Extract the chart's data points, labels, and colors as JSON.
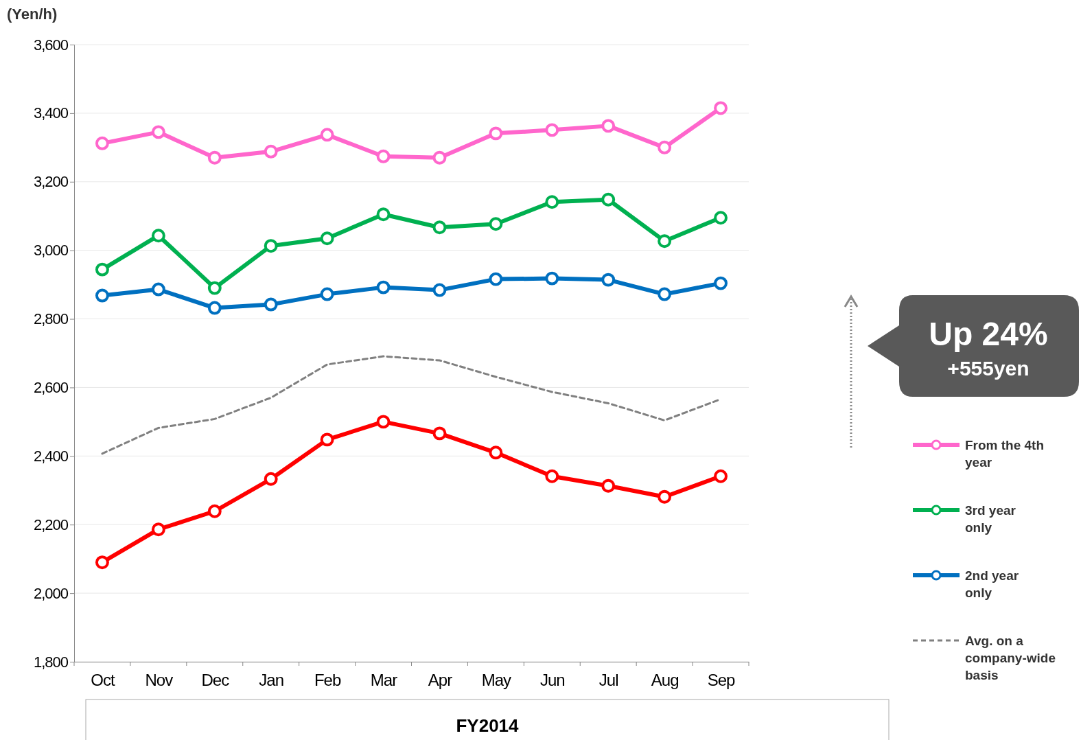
{
  "chart_data": {
    "type": "line",
    "ylabel": "(Yen/h)",
    "xlabel": "FY2014",
    "categories": [
      "Oct",
      "Nov",
      "Dec",
      "Jan",
      "Feb",
      "Mar",
      "Apr",
      "May",
      "Jun",
      "Jul",
      "Aug",
      "Sep"
    ],
    "ylim": [
      1800,
      3600
    ],
    "yticks": [
      {
        "value": 1800,
        "label": "1,800"
      },
      {
        "value": 2000,
        "label": "2,000"
      },
      {
        "value": 2200,
        "label": "2,200"
      },
      {
        "value": 2400,
        "label": "2,400"
      },
      {
        "value": 2600,
        "label": "2,600"
      },
      {
        "value": 2800,
        "label": "2,800"
      },
      {
        "value": 3000,
        "label": "3,000"
      },
      {
        "value": 3200,
        "label": "3,200"
      },
      {
        "value": 3400,
        "label": "3,400"
      },
      {
        "value": 3600,
        "label": "3,600"
      }
    ],
    "grid": "y",
    "legend": "right",
    "marker": "circle",
    "line_style": "solid",
    "series": [
      {
        "name": "From the 4th year",
        "color": "#ff66cc",
        "values": [
          3312,
          3345,
          3270,
          3288,
          3337,
          3274,
          3270,
          3341,
          3351,
          3363,
          3300,
          3415
        ]
      },
      {
        "name": "3rd year only",
        "color": "#00b050",
        "values": [
          2944,
          3043,
          2890,
          3013,
          3035,
          3105,
          3067,
          3077,
          3141,
          3148,
          3027,
          3095
        ]
      },
      {
        "name": "2nd year only",
        "color": "#0070c0",
        "values": [
          2868,
          2886,
          2832,
          2842,
          2872,
          2892,
          2884,
          2916,
          2918,
          2914,
          2872,
          2904
        ]
      },
      {
        "name": "Avg. on a company-wide basis",
        "color": "#808080",
        "line_style": "dashed",
        "marker": "none",
        "values": [
          2407,
          2482,
          2508,
          2570,
          2667,
          2691,
          2679,
          2631,
          2587,
          2554,
          2504,
          2566
        ]
      },
      {
        "color": "#ff0000",
        "values": [
          2090,
          2186,
          2239,
          2333,
          2448,
          2500,
          2466,
          2410,
          2341,
          2313,
          2281,
          2341
        ]
      }
    ],
    "annotations": [
      "Up 24%",
      "+555yen"
    ]
  }
}
